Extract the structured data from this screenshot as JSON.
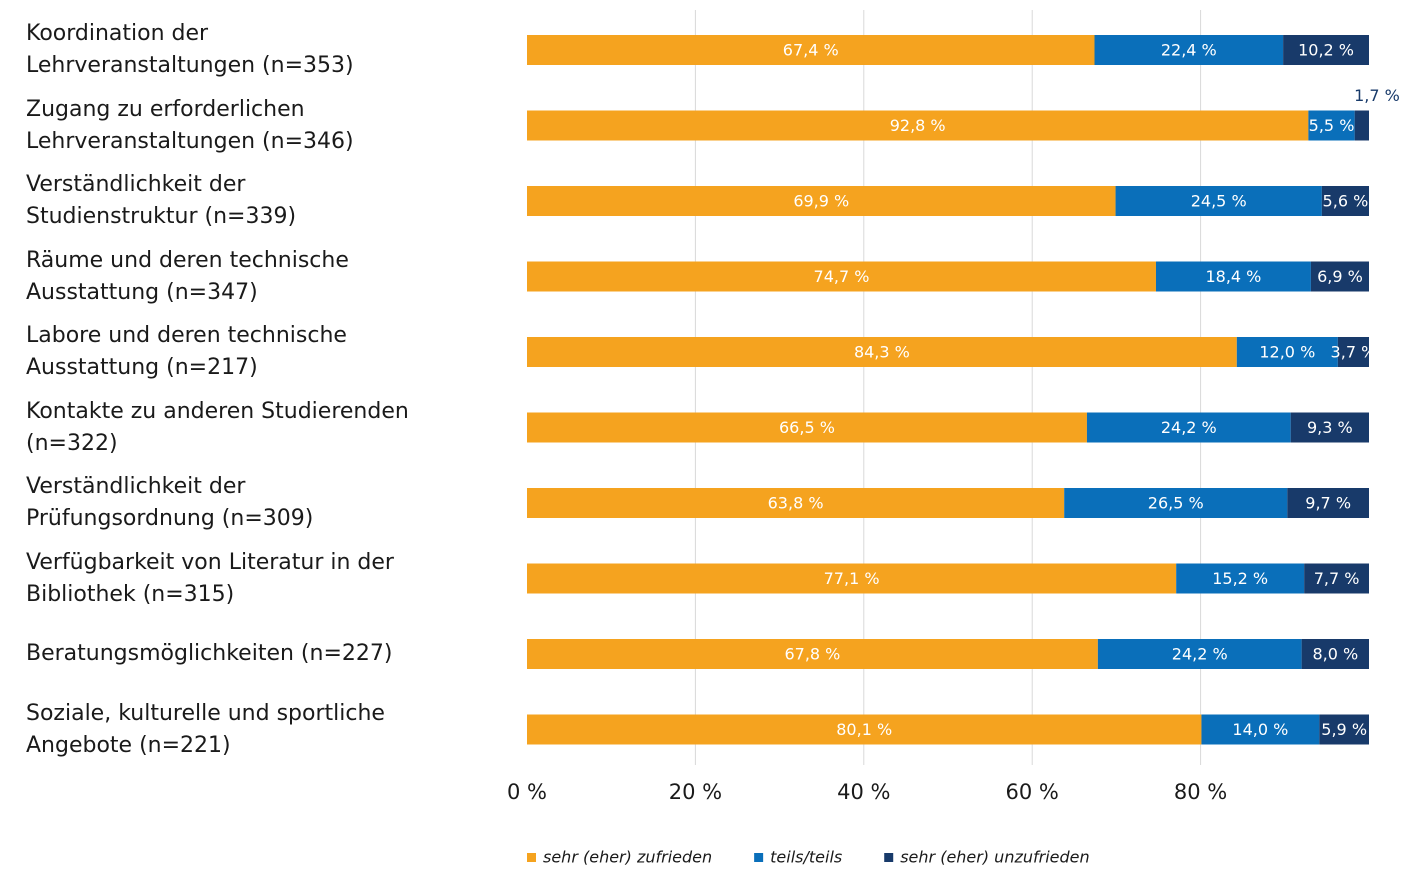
{
  "chart_data": {
    "type": "stacked_barh",
    "categories": [
      "Koordination der\nLehrveranstaltungen (n=353)",
      "Zugang zu erforderlichen\nLehrveranstaltungen (n=346)",
      "Verständlichkeit der\nStudienstruktur (n=339)",
      "Räume und deren technische\nAusstattung (n=347)",
      "Labore und deren technische\nAusstattung (n=217)",
      "Kontakte zu anderen Studierenden\n(n=322)",
      "Verständlichkeit der\nPrüfungsordnung (n=309)",
      "Verfügbarkeit von Literatur in der\nBibliothek (n=315)",
      "Beratungsmöglichkeiten (n=227)",
      "Soziale, kulturelle und sportliche\nAngebote (n=221)"
    ],
    "series": [
      {
        "name": "sehr (eher) zufrieden",
        "color": "#f5a31f",
        "values": [
          67.4,
          92.8,
          69.9,
          74.7,
          84.3,
          66.5,
          63.8,
          77.1,
          67.8,
          80.1
        ],
        "value_labels": [
          "67,4 %",
          "92,8 %",
          "69,9 %",
          "74,7 %",
          "84,3 %",
          "66,5 %",
          "63,8 %",
          "77,1 %",
          "67,8 %",
          "80,1 %"
        ]
      },
      {
        "name": "teils/teils",
        "color": "#0a6fba",
        "values": [
          22.4,
          5.5,
          24.5,
          18.4,
          12.0,
          24.2,
          26.5,
          15.2,
          24.2,
          14.0
        ],
        "value_labels": [
          "22,4 %",
          "5,5 %",
          "24,5 %",
          "18,4 %",
          "12,0 %",
          "24,2 %",
          "26,5 %",
          "15,2 %",
          "24,2 %",
          "14,0 %"
        ]
      },
      {
        "name": "sehr (eher) unzufrieden",
        "color": "#183a6a",
        "values": [
          10.2,
          1.7,
          5.6,
          6.9,
          3.7,
          9.3,
          9.7,
          7.7,
          8.0,
          5.9
        ],
        "value_labels": [
          "10,2 %",
          "1,7 %",
          "5,6 %",
          "6,9 %",
          "3,7 %",
          "9,3 %",
          "9,7 %",
          "7,7 %",
          "8,0 %",
          "5,9 %"
        ]
      }
    ],
    "xlim": [
      0,
      100
    ],
    "xticks": [
      {
        "value": 0,
        "label": "0 %"
      },
      {
        "value": 20,
        "label": "20 %"
      },
      {
        "value": 40,
        "label": "40 %"
      },
      {
        "value": 60,
        "label": "60 %"
      },
      {
        "value": 80,
        "label": "80 %"
      }
    ],
    "grid": true,
    "legend": "bottom"
  }
}
